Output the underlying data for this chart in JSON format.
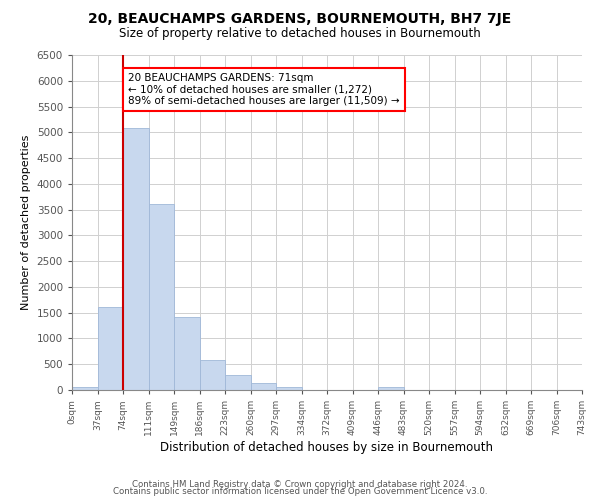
{
  "title": "20, BEAUCHAMPS GARDENS, BOURNEMOUTH, BH7 7JE",
  "subtitle": "Size of property relative to detached houses in Bournemouth",
  "xlabel": "Distribution of detached houses by size in Bournemouth",
  "ylabel": "Number of detached properties",
  "bin_labels": [
    "0sqm",
    "37sqm",
    "74sqm",
    "111sqm",
    "149sqm",
    "186sqm",
    "223sqm",
    "260sqm",
    "297sqm",
    "334sqm",
    "372sqm",
    "409sqm",
    "446sqm",
    "483sqm",
    "520sqm",
    "557sqm",
    "594sqm",
    "632sqm",
    "669sqm",
    "706sqm",
    "743sqm"
  ],
  "bar_heights": [
    50,
    1620,
    5080,
    3600,
    1420,
    590,
    300,
    145,
    60,
    0,
    0,
    0,
    50,
    0,
    0,
    0,
    0,
    0,
    0,
    0
  ],
  "bar_color": "#c8d8ee",
  "bar_edgecolor": "#a0b8d8",
  "marker_label": "20 BEAUCHAMPS GARDENS: 71sqm",
  "annotation_line1": "← 10% of detached houses are smaller (1,272)",
  "annotation_line2": "89% of semi-detached houses are larger (11,509) →",
  "marker_color": "#cc0000",
  "ylim": [
    0,
    6500
  ],
  "yticks": [
    0,
    500,
    1000,
    1500,
    2000,
    2500,
    3000,
    3500,
    4000,
    4500,
    5000,
    5500,
    6000,
    6500
  ],
  "footnote1": "Contains HM Land Registry data © Crown copyright and database right 2024.",
  "footnote2": "Contains public sector information licensed under the Open Government Licence v3.0.",
  "bg_color": "#ffffff",
  "grid_color": "#d0d0d0"
}
